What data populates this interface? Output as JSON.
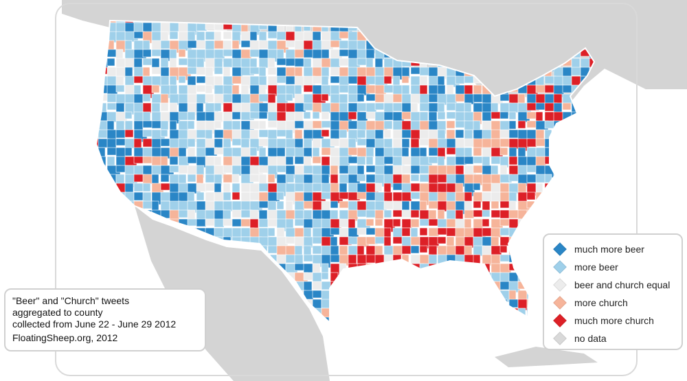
{
  "colors": {
    "much_more_beer": "#2a86c6",
    "more_beer": "#9fd0ea",
    "equal": "#ececec",
    "more_church": "#f6b49a",
    "much_more_church": "#dd2027",
    "no_data": "#d9d9d9",
    "land_background": "#d4d4d4",
    "ocean": "#ffffff"
  },
  "legend": {
    "items": [
      {
        "label": "much more beer",
        "color_key": "much_more_beer"
      },
      {
        "label": "more beer",
        "color_key": "more_beer"
      },
      {
        "label": "beer and church equal",
        "color_key": "equal"
      },
      {
        "label": "more church",
        "color_key": "more_church"
      },
      {
        "label": "much more church",
        "color_key": "much_more_church"
      },
      {
        "label": "no data",
        "color_key": "no_data"
      }
    ]
  },
  "caption": {
    "lines": [
      "\"Beer\" and \"Church\" tweets",
      "aggregated to county",
      "collected from June 22 - June 29 2012"
    ],
    "credit": "FloatingSheep.org, 2012"
  }
}
